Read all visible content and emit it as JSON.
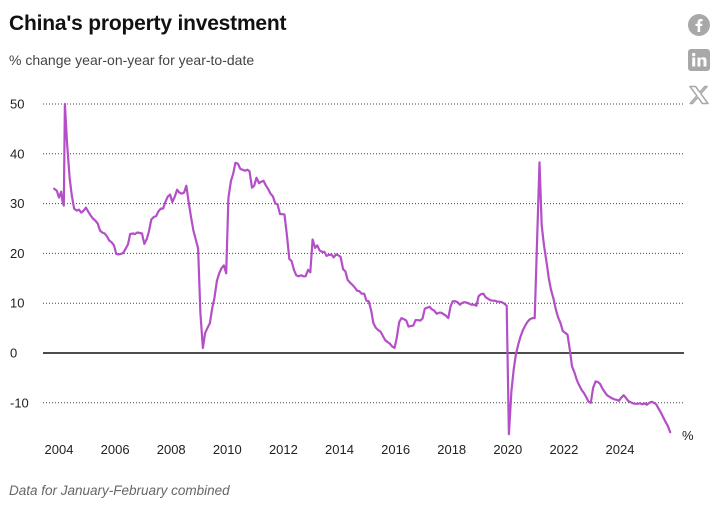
{
  "title": "China's property investment",
  "subtitle": "% change year-on-year for year-to-date",
  "note": "Data for January-February combined",
  "share": {
    "icons": [
      "facebook-icon",
      "linkedin-icon",
      "x-icon"
    ]
  },
  "colors": {
    "line": "#b44fc8",
    "grid": "#444444",
    "zero": "#111111",
    "icon": "#a8a8a8"
  },
  "chart_data": {
    "type": "line",
    "title": "China's property investment",
    "ylabel": "% change year-on-year for year-to-date",
    "unit_label": "%",
    "grid": "horizontal dotted",
    "ylim": [
      -17,
      51
    ],
    "xlim": [
      2003.7,
      2025.85
    ],
    "y_ticks": [
      50,
      40,
      30,
      20,
      10,
      0,
      -10
    ],
    "x_ticks": [
      "2004",
      "2006",
      "2008",
      "2010",
      "2012",
      "2014",
      "2016",
      "2018",
      "2020",
      "2022",
      "2024"
    ],
    "series": [
      {
        "points": [
          [
            2003.83,
            33.0
          ],
          [
            2003.92,
            32.6
          ],
          [
            2004.0,
            31.2
          ],
          [
            2004.08,
            32.4
          ],
          [
            2004.12,
            30.5
          ],
          [
            2004.17,
            29.6
          ],
          [
            2004.21,
            50.0
          ],
          [
            2004.29,
            42.0
          ],
          [
            2004.38,
            35.0
          ],
          [
            2004.46,
            31.5
          ],
          [
            2004.54,
            29.0
          ],
          [
            2004.63,
            28.6
          ],
          [
            2004.71,
            28.8
          ],
          [
            2004.79,
            28.2
          ],
          [
            2004.88,
            28.6
          ],
          [
            2004.96,
            29.2
          ],
          [
            2005.04,
            28.4
          ],
          [
            2005.13,
            27.6
          ],
          [
            2005.21,
            27.0
          ],
          [
            2005.29,
            26.6
          ],
          [
            2005.38,
            26.0
          ],
          [
            2005.46,
            24.6
          ],
          [
            2005.54,
            24.2
          ],
          [
            2005.63,
            24.0
          ],
          [
            2005.71,
            23.4
          ],
          [
            2005.79,
            22.6
          ],
          [
            2005.88,
            22.2
          ],
          [
            2005.96,
            21.6
          ],
          [
            2006.04,
            19.9
          ],
          [
            2006.13,
            19.8
          ],
          [
            2006.21,
            19.9
          ],
          [
            2006.29,
            20.1
          ],
          [
            2006.38,
            21.0
          ],
          [
            2006.46,
            21.8
          ],
          [
            2006.54,
            23.9
          ],
          [
            2006.63,
            24.0
          ],
          [
            2006.71,
            23.9
          ],
          [
            2006.79,
            24.2
          ],
          [
            2006.88,
            24.1
          ],
          [
            2006.96,
            24.0
          ],
          [
            2007.04,
            21.9
          ],
          [
            2007.13,
            22.9
          ],
          [
            2007.21,
            24.5
          ],
          [
            2007.29,
            26.8
          ],
          [
            2007.38,
            27.3
          ],
          [
            2007.46,
            27.5
          ],
          [
            2007.54,
            28.4
          ],
          [
            2007.63,
            29.0
          ],
          [
            2007.71,
            29.0
          ],
          [
            2007.79,
            30.3
          ],
          [
            2007.88,
            31.4
          ],
          [
            2007.96,
            31.8
          ],
          [
            2008.04,
            30.3
          ],
          [
            2008.13,
            31.4
          ],
          [
            2008.21,
            32.8
          ],
          [
            2008.29,
            32.2
          ],
          [
            2008.38,
            32.0
          ],
          [
            2008.46,
            32.2
          ],
          [
            2008.54,
            33.6
          ],
          [
            2008.63,
            30.0
          ],
          [
            2008.71,
            27.2
          ],
          [
            2008.79,
            24.6
          ],
          [
            2008.88,
            22.7
          ],
          [
            2008.96,
            21.0
          ],
          [
            2009.04,
            8.0
          ],
          [
            2009.13,
            1.0
          ],
          [
            2009.21,
            4.0
          ],
          [
            2009.29,
            5.0
          ],
          [
            2009.38,
            6.0
          ],
          [
            2009.46,
            9.0
          ],
          [
            2009.54,
            11.0
          ],
          [
            2009.63,
            14.5
          ],
          [
            2009.71,
            16.0
          ],
          [
            2009.79,
            17.0
          ],
          [
            2009.88,
            17.6
          ],
          [
            2009.96,
            16.0
          ],
          [
            2010.04,
            31.1
          ],
          [
            2010.13,
            34.5
          ],
          [
            2010.21,
            36.0
          ],
          [
            2010.29,
            38.2
          ],
          [
            2010.38,
            38.0
          ],
          [
            2010.46,
            37.0
          ],
          [
            2010.54,
            36.8
          ],
          [
            2010.63,
            36.6
          ],
          [
            2010.71,
            36.8
          ],
          [
            2010.79,
            36.5
          ],
          [
            2010.88,
            33.2
          ],
          [
            2010.96,
            33.6
          ],
          [
            2011.04,
            35.2
          ],
          [
            2011.13,
            34.1
          ],
          [
            2011.21,
            34.4
          ],
          [
            2011.29,
            34.6
          ],
          [
            2011.38,
            33.6
          ],
          [
            2011.46,
            32.9
          ],
          [
            2011.54,
            32.0
          ],
          [
            2011.63,
            31.4
          ],
          [
            2011.71,
            30.0
          ],
          [
            2011.79,
            29.9
          ],
          [
            2011.88,
            27.9
          ],
          [
            2011.96,
            27.9
          ],
          [
            2012.04,
            27.8
          ],
          [
            2012.13,
            23.5
          ],
          [
            2012.21,
            18.9
          ],
          [
            2012.29,
            18.5
          ],
          [
            2012.38,
            16.6
          ],
          [
            2012.46,
            15.6
          ],
          [
            2012.54,
            15.4
          ],
          [
            2012.63,
            15.6
          ],
          [
            2012.71,
            15.4
          ],
          [
            2012.79,
            15.4
          ],
          [
            2012.88,
            16.7
          ],
          [
            2012.96,
            16.2
          ],
          [
            2013.04,
            22.8
          ],
          [
            2013.13,
            21.1
          ],
          [
            2013.21,
            21.6
          ],
          [
            2013.29,
            20.6
          ],
          [
            2013.38,
            20.3
          ],
          [
            2013.46,
            20.3
          ],
          [
            2013.54,
            19.5
          ],
          [
            2013.63,
            19.7
          ],
          [
            2013.71,
            19.8
          ],
          [
            2013.79,
            19.2
          ],
          [
            2013.88,
            19.8
          ],
          [
            2013.96,
            19.6
          ],
          [
            2014.04,
            19.3
          ],
          [
            2014.13,
            16.8
          ],
          [
            2014.21,
            16.4
          ],
          [
            2014.29,
            14.7
          ],
          [
            2014.38,
            14.1
          ],
          [
            2014.46,
            13.7
          ],
          [
            2014.54,
            13.2
          ],
          [
            2014.63,
            12.5
          ],
          [
            2014.71,
            12.4
          ],
          [
            2014.79,
            11.9
          ],
          [
            2014.88,
            11.9
          ],
          [
            2014.96,
            10.5
          ],
          [
            2015.04,
            10.4
          ],
          [
            2015.13,
            8.5
          ],
          [
            2015.21,
            6.0
          ],
          [
            2015.29,
            5.1
          ],
          [
            2015.38,
            4.6
          ],
          [
            2015.46,
            4.3
          ],
          [
            2015.54,
            3.5
          ],
          [
            2015.63,
            2.6
          ],
          [
            2015.71,
            2.2
          ],
          [
            2015.79,
            1.9
          ],
          [
            2015.88,
            1.3
          ],
          [
            2015.96,
            1.0
          ],
          [
            2016.04,
            3.0
          ],
          [
            2016.13,
            6.2
          ],
          [
            2016.21,
            7.0
          ],
          [
            2016.29,
            6.8
          ],
          [
            2016.38,
            6.5
          ],
          [
            2016.46,
            5.3
          ],
          [
            2016.54,
            5.4
          ],
          [
            2016.63,
            5.5
          ],
          [
            2016.71,
            6.6
          ],
          [
            2016.79,
            6.6
          ],
          [
            2016.88,
            6.5
          ],
          [
            2016.96,
            6.9
          ],
          [
            2017.04,
            8.9
          ],
          [
            2017.13,
            9.1
          ],
          [
            2017.21,
            9.3
          ],
          [
            2017.29,
            8.8
          ],
          [
            2017.38,
            8.5
          ],
          [
            2017.46,
            7.9
          ],
          [
            2017.54,
            8.1
          ],
          [
            2017.63,
            8.1
          ],
          [
            2017.71,
            7.8
          ],
          [
            2017.79,
            7.5
          ],
          [
            2017.88,
            7.0
          ],
          [
            2017.96,
            9.4
          ],
          [
            2018.04,
            10.4
          ],
          [
            2018.13,
            10.4
          ],
          [
            2018.21,
            10.2
          ],
          [
            2018.29,
            9.7
          ],
          [
            2018.38,
            10.1
          ],
          [
            2018.46,
            10.2
          ],
          [
            2018.54,
            10.1
          ],
          [
            2018.63,
            9.9
          ],
          [
            2018.71,
            9.7
          ],
          [
            2018.79,
            9.7
          ],
          [
            2018.88,
            9.5
          ],
          [
            2018.96,
            11.4
          ],
          [
            2019.04,
            11.8
          ],
          [
            2019.13,
            11.9
          ],
          [
            2019.21,
            11.2
          ],
          [
            2019.29,
            10.9
          ],
          [
            2019.38,
            10.6
          ],
          [
            2019.46,
            10.5
          ],
          [
            2019.54,
            10.5
          ],
          [
            2019.63,
            10.3
          ],
          [
            2019.71,
            10.3
          ],
          [
            2019.79,
            10.2
          ],
          [
            2019.88,
            9.9
          ],
          [
            2019.96,
            9.5
          ],
          [
            2020.04,
            -16.3
          ],
          [
            2020.13,
            -7.7
          ],
          [
            2020.21,
            -3.3
          ],
          [
            2020.29,
            -0.3
          ],
          [
            2020.38,
            1.9
          ],
          [
            2020.46,
            3.4
          ],
          [
            2020.54,
            4.6
          ],
          [
            2020.63,
            5.6
          ],
          [
            2020.71,
            6.3
          ],
          [
            2020.79,
            6.8
          ],
          [
            2020.88,
            7.0
          ],
          [
            2020.96,
            7.0
          ],
          [
            2021.13,
            38.3
          ],
          [
            2021.21,
            25.6
          ],
          [
            2021.29,
            21.6
          ],
          [
            2021.38,
            18.3
          ],
          [
            2021.46,
            15.0
          ],
          [
            2021.54,
            12.7
          ],
          [
            2021.63,
            10.9
          ],
          [
            2021.71,
            8.8
          ],
          [
            2021.79,
            7.2
          ],
          [
            2021.88,
            6.0
          ],
          [
            2021.96,
            4.4
          ],
          [
            2022.04,
            4.1
          ],
          [
            2022.13,
            3.7
          ],
          [
            2022.21,
            0.7
          ],
          [
            2022.29,
            -2.7
          ],
          [
            2022.38,
            -4.0
          ],
          [
            2022.46,
            -5.4
          ],
          [
            2022.54,
            -6.4
          ],
          [
            2022.63,
            -7.4
          ],
          [
            2022.71,
            -8.0
          ],
          [
            2022.79,
            -8.8
          ],
          [
            2022.88,
            -9.8
          ],
          [
            2022.96,
            -10.0
          ],
          [
            2023.04,
            -7.0
          ],
          [
            2023.13,
            -5.7
          ],
          [
            2023.21,
            -5.8
          ],
          [
            2023.29,
            -6.2
          ],
          [
            2023.38,
            -7.2
          ],
          [
            2023.46,
            -7.9
          ],
          [
            2023.54,
            -8.5
          ],
          [
            2023.63,
            -8.8
          ],
          [
            2023.71,
            -9.1
          ],
          [
            2023.79,
            -9.3
          ],
          [
            2023.88,
            -9.4
          ],
          [
            2023.96,
            -9.6
          ],
          [
            2024.04,
            -9.0
          ],
          [
            2024.13,
            -8.5
          ],
          [
            2024.21,
            -9.0
          ],
          [
            2024.29,
            -9.6
          ],
          [
            2024.38,
            -9.9
          ],
          [
            2024.46,
            -10.1
          ],
          [
            2024.54,
            -10.2
          ],
          [
            2024.63,
            -10.2
          ],
          [
            2024.71,
            -10.1
          ],
          [
            2024.79,
            -10.3
          ],
          [
            2024.88,
            -10.1
          ],
          [
            2024.96,
            -10.4
          ],
          [
            2025.04,
            -10.0
          ],
          [
            2025.13,
            -9.8
          ],
          [
            2025.21,
            -10.0
          ],
          [
            2025.29,
            -10.3
          ],
          [
            2025.38,
            -11.2
          ],
          [
            2025.46,
            -12.0
          ],
          [
            2025.54,
            -12.9
          ],
          [
            2025.63,
            -13.9
          ],
          [
            2025.71,
            -14.7
          ],
          [
            2025.79,
            -15.9
          ]
        ]
      }
    ]
  }
}
